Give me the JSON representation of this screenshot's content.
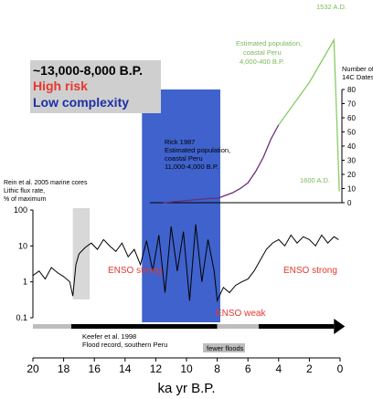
{
  "risk_box": {
    "title": "~13,000-8,000 B.P.",
    "high": "High risk",
    "low": "Low complexity"
  },
  "colors": {
    "blue_band": "#2f55c8",
    "gray_band": "#d8d8d8",
    "population_green": "#88cc66",
    "population_purple": "#6a2d7a",
    "red_text": "#e8372c"
  },
  "chart_data": [
    {
      "type": "line",
      "title": "Rein et al. 2005 marine cores",
      "ylabel": "Lithic flux rate, % of maximum",
      "xlabel": "ka yr B.P.",
      "x_ticks": [
        20,
        18,
        16,
        14,
        12,
        10,
        8,
        6,
        4,
        2,
        0
      ],
      "xlim": [
        20,
        0
      ],
      "y_scale": "log",
      "ylim": [
        0.1,
        100
      ],
      "y_ticks": [
        "100",
        "10",
        "1",
        "0.1"
      ],
      "series": [
        {
          "x": [
            20,
            19.6,
            19.2,
            18.8,
            18.4,
            18.0,
            17.6,
            17.4,
            17.2,
            17.0,
            16.6,
            16.2,
            15.8,
            15.4,
            15.0,
            14.6,
            14.2,
            13.8,
            13.4,
            13.0,
            12.6,
            12.2,
            11.8,
            11.4,
            11.0,
            10.6,
            10.2,
            9.8,
            9.4,
            9.0,
            8.6,
            8.2,
            8.0,
            7.6,
            7.2,
            6.8,
            6.4,
            6.0,
            5.6,
            5.2,
            4.8,
            4.4,
            4.0,
            3.6,
            3.2,
            2.8,
            2.4,
            2.0,
            1.6,
            1.2,
            0.8,
            0.4,
            0.1
          ],
          "y": [
            1.5,
            2.0,
            1.2,
            2.5,
            1.8,
            1.4,
            1.0,
            0.4,
            3.0,
            6.0,
            9.0,
            12,
            8.0,
            15,
            10,
            7.0,
            12,
            5.0,
            8.0,
            3.0,
            14,
            2.0,
            20,
            0.5,
            35,
            2.0,
            25,
            0.3,
            40,
            1.0,
            15,
            2.0,
            0.3,
            0.7,
            0.5,
            0.8,
            1.0,
            1.2,
            2.0,
            4.0,
            8.0,
            12,
            15,
            10,
            20,
            12,
            18,
            15,
            10,
            20,
            12,
            18,
            15
          ]
        }
      ],
      "annotations": {
        "enso_strong_1": "ENSO strong",
        "enso_weak": "ENSO weak",
        "enso_strong_2": "ENSO strong"
      },
      "bands": [
        {
          "from": 17.4,
          "to": 16.3,
          "color": "gray"
        },
        {
          "from": 12.9,
          "to": 7.8,
          "color": "blue"
        }
      ]
    },
    {
      "type": "line",
      "title": "Estimated population, coastal Peru",
      "ylabel": "Number of 14C Dates",
      "y_ticks": [
        0,
        10,
        20,
        30,
        40,
        50,
        60,
        70,
        80
      ],
      "ylim": [
        0,
        80
      ],
      "annotations": {
        "rick_1": "Rick 1987",
        "rick_2": "Estimated population,",
        "rick_3": "coastal Peru",
        "rick_4": "11,000-4,000 B.P.",
        "est_1": "Estimated population,",
        "est_2": "coastal Peru",
        "est_3": "4,000-400 B.P.",
        "ad_1532": "1532 A.D.",
        "ad_1600": "1600 A.D."
      },
      "series": [
        {
          "name": "Rick 1987",
          "color": "purple",
          "x": [
            11.5,
            10.5,
            9.5,
            8.5,
            8.0,
            7.5,
            7.0,
            6.5,
            6.0,
            5.5,
            5.0,
            4.5,
            4.0
          ],
          "y": [
            0,
            1,
            2,
            3,
            3,
            5,
            7,
            10,
            14,
            22,
            32,
            45,
            55
          ]
        },
        {
          "name": "Estimated population, coastal Peru 4,000-400 B.P.",
          "color": "green",
          "x": [
            4.0,
            3.0,
            2.0,
            1.2,
            0.4,
            0.05
          ],
          "y": [
            55,
            70,
            85,
            100,
            115,
            8
          ]
        }
      ]
    },
    {
      "type": "bar",
      "title": "Keefer et al. 1998",
      "subtitle": "Flood record, southern Peru",
      "annotation": "fewer floods",
      "segments": [
        {
          "from": 20,
          "to": 17.5,
          "color": "gray"
        },
        {
          "from": 17.5,
          "to": 8.0,
          "color": "black"
        },
        {
          "from": 8.0,
          "to": 5.3,
          "color": "gray"
        },
        {
          "from": 5.3,
          "to": 0.4,
          "color": "black"
        }
      ]
    }
  ]
}
